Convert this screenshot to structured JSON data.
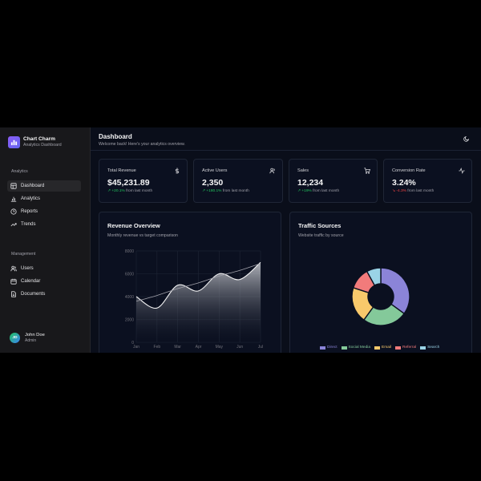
{
  "brand": {
    "title": "Chart Charm",
    "subtitle": "Analytics Dashboard",
    "icon": "bar-chart-icon"
  },
  "sidebar": {
    "analytics_label": "Analytics",
    "analytics_items": [
      {
        "label": "Dashboard",
        "icon": "layout-icon",
        "active": true
      },
      {
        "label": "Analytics",
        "icon": "bar-chart-icon"
      },
      {
        "label": "Reports",
        "icon": "clock-icon"
      },
      {
        "label": "Trends",
        "icon": "trending-up-icon"
      }
    ],
    "management_label": "Management",
    "management_items": [
      {
        "label": "Users",
        "icon": "users-icon"
      },
      {
        "label": "Calendar",
        "icon": "calendar-icon"
      },
      {
        "label": "Documents",
        "icon": "document-icon"
      }
    ]
  },
  "user": {
    "initials": "JD",
    "name": "John Doe",
    "role": "Admin"
  },
  "header": {
    "title": "Dashboard",
    "subtitle": "Welcome back! Here's your analytics overview.",
    "theme_icon": "moon-icon"
  },
  "stats": [
    {
      "label": "Total Revenue",
      "value": "$45,231.89",
      "change": "+20.1%",
      "suffix": "from last month",
      "trend": "up",
      "icon": "dollar-icon"
    },
    {
      "label": "Active Users",
      "value": "2,350",
      "change": "+180.1%",
      "suffix": "from last month",
      "trend": "up",
      "icon": "users-icon"
    },
    {
      "label": "Sales",
      "value": "12,234",
      "change": "+19%",
      "suffix": "from last month",
      "trend": "up",
      "icon": "cart-icon"
    },
    {
      "label": "Conversion Rate",
      "value": "3.24%",
      "change": "-4.3%",
      "suffix": "from last month",
      "trend": "down",
      "icon": "activity-icon"
    }
  ],
  "revenue": {
    "title": "Revenue Overview",
    "subtitle": "Monthly revenue vs target comparison"
  },
  "traffic": {
    "title": "Traffic Sources",
    "subtitle": "Website traffic by source"
  },
  "colors": {
    "green": "#22c55e",
    "red": "#ef4444",
    "accent": "#8b5cf6"
  },
  "chart_data": [
    {
      "type": "area",
      "categories": [
        "Jan",
        "Feb",
        "Mar",
        "Apr",
        "May",
        "Jun",
        "Jul"
      ],
      "ylim": [
        0,
        8000
      ],
      "yticks": [
        0,
        2000,
        4000,
        6000,
        8000
      ],
      "grid": true,
      "series": [
        {
          "values": [
            4000,
            3000,
            5000,
            4500,
            6000,
            5500,
            7000
          ]
        },
        {
          "values": [
            3600,
            4100,
            4700,
            5200,
            5800,
            6300,
            6900
          ]
        }
      ]
    },
    {
      "type": "pie",
      "legend": "bottom",
      "labels": [
        "Direct",
        "Social Media",
        "Email",
        "Referral",
        "Search"
      ],
      "values": [
        35,
        25,
        20,
        12,
        8
      ],
      "colors": [
        "#8b84d8",
        "#84c99a",
        "#f9c96b",
        "#f27b7b",
        "#9ad3e6"
      ]
    }
  ]
}
